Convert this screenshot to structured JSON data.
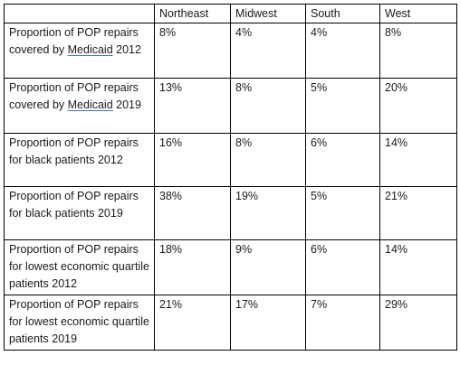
{
  "table": {
    "headers": [
      "",
      "Northeast",
      "Midwest",
      "South",
      "West"
    ],
    "rows": [
      {
        "label_parts": [
          "Proportion of POP repairs covered by ",
          "Medicaid",
          " 2012"
        ],
        "values": [
          "8%",
          "4%",
          "4%",
          "8%"
        ]
      },
      {
        "label_parts": [
          "Proportion of POP repairs covered by ",
          "Medicaid",
          " 2019"
        ],
        "values": [
          "13%",
          "8%",
          "5%",
          "20%"
        ]
      },
      {
        "label": "Proportion of POP repairs for black patients 2012",
        "values": [
          "16%",
          "8%",
          "6%",
          "14%"
        ]
      },
      {
        "label": "Proportion of POP repairs for black patients 2019",
        "values": [
          "38%",
          "19%",
          "5%",
          "21%"
        ]
      },
      {
        "label": "Proportion of POP repairs for lowest economic quartile patients 2012",
        "values": [
          "18%",
          "9%",
          "6%",
          "14%"
        ]
      },
      {
        "label": "Proportion of POP repairs for lowest economic quartile patients 2019",
        "values": [
          "21%",
          "17%",
          "7%",
          "29%"
        ]
      }
    ]
  }
}
